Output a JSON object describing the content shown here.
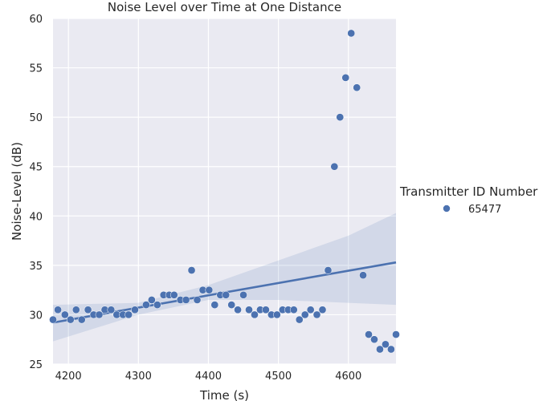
{
  "chart_data": {
    "type": "scatter",
    "title": "Noise Level over Time at One Distance",
    "xlabel": "Time (s)",
    "ylabel": "Noise-Level (dB)",
    "xlim": [
      4178,
      4668
    ],
    "ylim": [
      25,
      60
    ],
    "xticks": [
      4200,
      4300,
      4400,
      4500,
      4600
    ],
    "yticks": [
      25,
      30,
      35,
      40,
      45,
      50,
      55,
      60
    ],
    "grid": true,
    "legend": {
      "title": "Transmitter ID Number",
      "placement": "right",
      "entries": [
        "65477"
      ]
    },
    "series": [
      {
        "name": "65477",
        "color": "#4c72b0",
        "points": [
          [
            4178,
            29.5
          ],
          [
            4185,
            30.5
          ],
          [
            4195,
            30
          ],
          [
            4203,
            29.5
          ],
          [
            4211,
            30.5
          ],
          [
            4219,
            29.5
          ],
          [
            4228,
            30.5
          ],
          [
            4236,
            30
          ],
          [
            4244,
            30
          ],
          [
            4252,
            30.5
          ],
          [
            4261,
            30.5
          ],
          [
            4269,
            30
          ],
          [
            4278,
            30
          ],
          [
            4286,
            30
          ],
          [
            4295,
            30.5
          ],
          [
            4311,
            31
          ],
          [
            4319,
            31.5
          ],
          [
            4327,
            31
          ],
          [
            4336,
            32
          ],
          [
            4344,
            32
          ],
          [
            4351,
            32
          ],
          [
            4360,
            31.5
          ],
          [
            4368,
            31.5
          ],
          [
            4376,
            34.5
          ],
          [
            4384,
            31.5
          ],
          [
            4392,
            32.5
          ],
          [
            4401,
            32.5
          ],
          [
            4409,
            31
          ],
          [
            4417,
            32
          ],
          [
            4425,
            32
          ],
          [
            4433,
            31
          ],
          [
            4442,
            30.5
          ],
          [
            4450,
            32
          ],
          [
            4458,
            30.5
          ],
          [
            4466,
            30
          ],
          [
            4474,
            30.5
          ],
          [
            4482,
            30.5
          ],
          [
            4490,
            30
          ],
          [
            4498,
            30
          ],
          [
            4506,
            30.5
          ],
          [
            4514,
            30.5
          ],
          [
            4522,
            30.5
          ],
          [
            4530,
            29.5
          ],
          [
            4538,
            30
          ],
          [
            4546,
            30.5
          ],
          [
            4555,
            30
          ],
          [
            4563,
            30.5
          ],
          [
            4571,
            34.5
          ],
          [
            4580,
            45
          ],
          [
            4588,
            50
          ],
          [
            4596,
            54
          ],
          [
            4604,
            58.5
          ],
          [
            4612,
            53
          ],
          [
            4621,
            34
          ],
          [
            4629,
            28
          ],
          [
            4637,
            27.5
          ],
          [
            4645,
            26.5
          ],
          [
            4653,
            27
          ],
          [
            4661,
            26.5
          ],
          [
            4668,
            28
          ]
        ]
      }
    ],
    "regression": {
      "line": [
        [
          4178,
          29.2
        ],
        [
          4668,
          35.3
        ]
      ],
      "ci_band_upper": [
        [
          4178,
          31.0
        ],
        [
          4300,
          31.2
        ],
        [
          4400,
          33.0
        ],
        [
          4500,
          35.5
        ],
        [
          4600,
          38.0
        ],
        [
          4668,
          40.3
        ]
      ],
      "ci_band_lower": [
        [
          4178,
          27.3
        ],
        [
          4300,
          30.0
        ],
        [
          4400,
          31.5
        ],
        [
          4500,
          31.5
        ],
        [
          4600,
          31.2
        ],
        [
          4668,
          31.0
        ]
      ]
    }
  }
}
